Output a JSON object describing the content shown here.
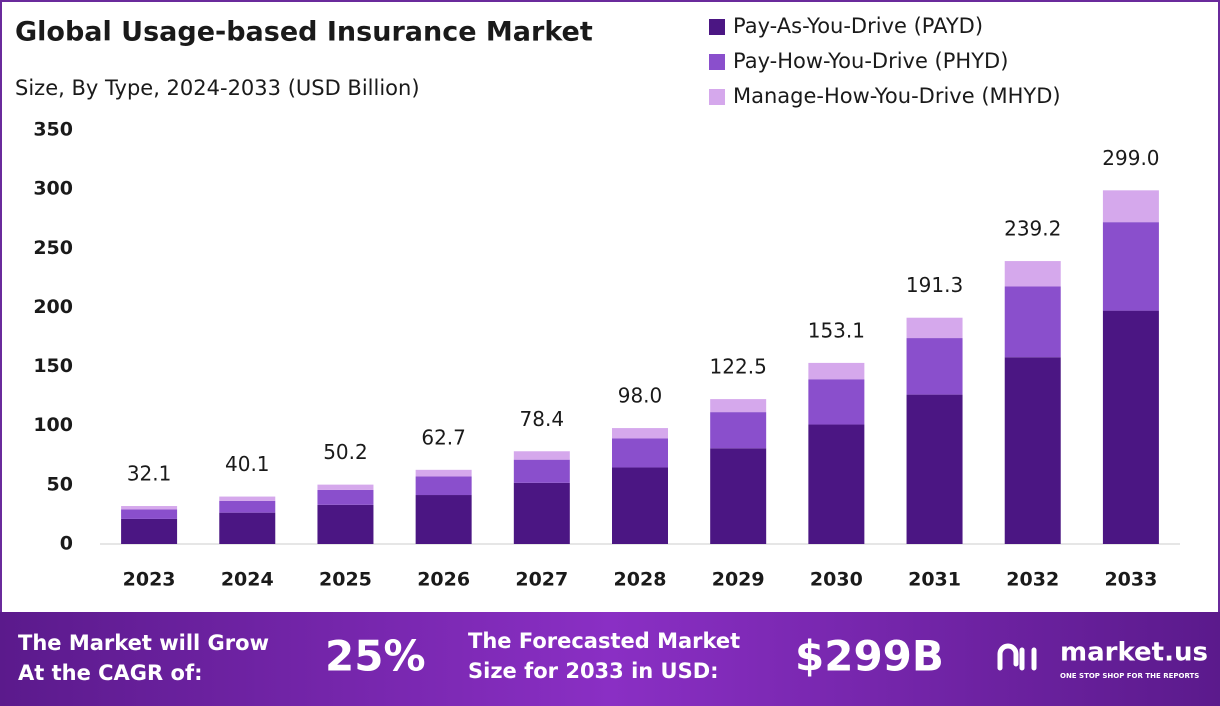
{
  "chart_data": {
    "type": "stacked_bar",
    "title": "Global Usage-based Insurance Market",
    "subtitle": "Size, By Type, 2024-2033 (USD Billion)",
    "categories": [
      "2023",
      "2024",
      "2025",
      "2026",
      "2027",
      "2028",
      "2029",
      "2030",
      "2031",
      "2032",
      "2033"
    ],
    "series": [
      {
        "name": "Pay-As-You-Drive (PAYD)",
        "color": "#4b1683",
        "values": [
          21.2,
          26.5,
          33.1,
          41.4,
          51.7,
          64.7,
          80.9,
          101.0,
          126.3,
          157.9,
          197.3
        ]
      },
      {
        "name": "Pay-How-You-Drive (PHYD)",
        "color": "#8a4fcc",
        "values": [
          8.0,
          10.0,
          12.6,
          15.7,
          19.6,
          24.5,
          30.6,
          38.3,
          47.8,
          59.8,
          74.8
        ]
      },
      {
        "name": "Manage-How-You-Drive (MHYD)",
        "color": "#d5a8ec",
        "values": [
          2.9,
          3.6,
          4.5,
          5.6,
          7.1,
          8.8,
          11.0,
          13.8,
          17.2,
          21.5,
          26.9
        ]
      }
    ],
    "totals": [
      32.1,
      40.1,
      50.2,
      62.7,
      78.4,
      98.0,
      122.5,
      153.1,
      191.3,
      239.2,
      299.0
    ],
    "total_labels": [
      "32.1",
      "40.1",
      "50.2",
      "62.7",
      "78.4",
      "98.0",
      "122.5",
      "153.1",
      "191.3",
      "239.2",
      "299.0"
    ],
    "ylim": [
      0,
      350
    ],
    "yticks": [
      0,
      50,
      100,
      150,
      200,
      250,
      300,
      350
    ],
    "legend": "top-right"
  },
  "footer": {
    "cagr_label": [
      "The Market will Grow",
      "At the CAGR of:"
    ],
    "cagr_value": "25%",
    "forecast_label": [
      "The Forecasted Market",
      "Size for 2033 in USD:"
    ],
    "forecast_value": "$299B",
    "brand": "market.us",
    "tagline": "ONE STOP SHOP FOR THE REPORTS"
  }
}
